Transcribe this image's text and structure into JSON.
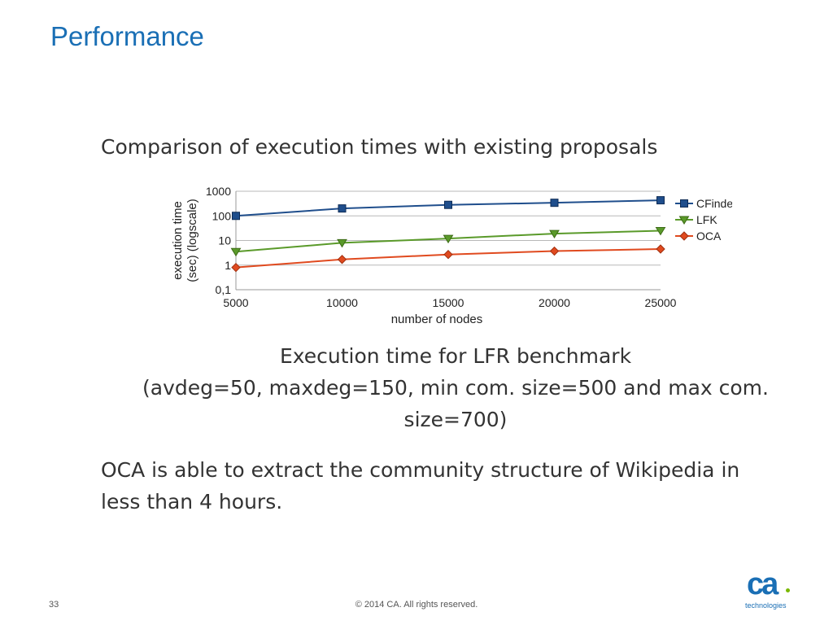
{
  "slide": {
    "title": "Performance",
    "heading": "Comparison of execution times with existing proposals",
    "caption_lines": [
      "Execution time for LFR benchmark",
      "(avdeg=50, maxdeg=150, min com. size=500 and max com.",
      "size=700)"
    ],
    "body_lines": [
      "OCA is able to extract the community structure of Wikipedia in",
      "less than 4 hours."
    ]
  },
  "footer": {
    "page_number": "33",
    "copyright": "© 2014 CA. All rights reserved."
  },
  "logo": {
    "mark": "ca",
    "subtitle": "technologies"
  },
  "chart_data": {
    "type": "line",
    "xlabel": "number of nodes",
    "ylabel_lines": [
      "execution time",
      "(sec) (logscale)"
    ],
    "x": [
      5000,
      10000,
      15000,
      20000,
      25000
    ],
    "x_tick_labels": [
      "5000",
      "10000",
      "15000",
      "20000",
      "25000"
    ],
    "y_scale": "log",
    "ylim": [
      0.1,
      1000
    ],
    "y_tick_values": [
      0.1,
      1,
      10,
      100,
      1000
    ],
    "y_tick_labels": [
      "0,1",
      "1",
      "10",
      "100",
      "1000"
    ],
    "grid": "horizontal",
    "legend_position": "right",
    "series": [
      {
        "name": "CFinder",
        "values": [
          100,
          200,
          280,
          340,
          430
        ],
        "color": "#1f4e8c",
        "marker": "square"
      },
      {
        "name": "LFK",
        "values": [
          3.5,
          8,
          12,
          19,
          25
        ],
        "color": "#5a9a2a",
        "marker": "triangle-down"
      },
      {
        "name": "OCA",
        "values": [
          0.8,
          1.7,
          2.7,
          3.7,
          4.5
        ],
        "color": "#e04a1f",
        "marker": "diamond"
      }
    ]
  }
}
